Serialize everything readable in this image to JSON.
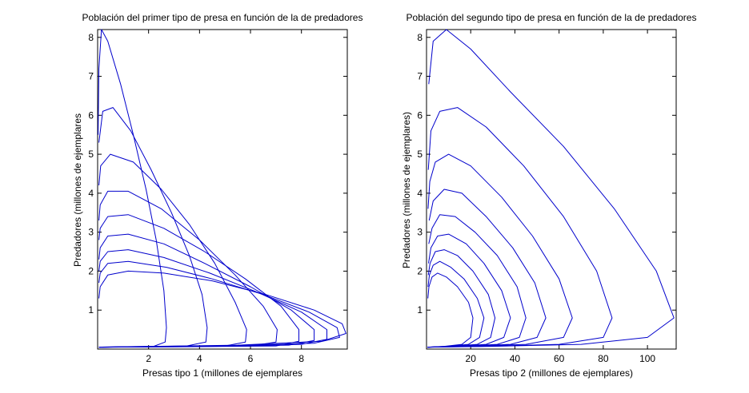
{
  "chart_data": [
    {
      "type": "line",
      "title": "Población del primer tipo de presa en  función de la de predadores",
      "xlabel": "Presas tipo 1 (millones de ejemplares",
      "ylabel": "Predadores (millones de ejemplares",
      "xlim": [
        0,
        9.8
      ],
      "ylim": [
        0,
        8.2
      ],
      "xticks": [
        2,
        4,
        6,
        8
      ],
      "yticks": [
        1,
        2,
        3,
        4,
        5,
        6,
        7,
        8
      ],
      "grid": false,
      "line_color": "#0000cc",
      "series": [
        {
          "points": [
            [
              0.05,
              0.05
            ],
            [
              0.8,
              0.06
            ],
            [
              2.2,
              0.07
            ],
            [
              2.65,
              0.18
            ],
            [
              2.7,
              0.55
            ],
            [
              2.6,
              1.5
            ],
            [
              2.3,
              2.8
            ],
            [
              1.9,
              4.1
            ],
            [
              1.4,
              5.5
            ],
            [
              0.9,
              6.8
            ],
            [
              0.4,
              7.9
            ],
            [
              0.15,
              8.2
            ],
            [
              0.05,
              7.2
            ],
            [
              0.02,
              5.5
            ]
          ]
        },
        {
          "points": [
            [
              0.05,
              0.05
            ],
            [
              1.5,
              0.06
            ],
            [
              3.5,
              0.08
            ],
            [
              4.25,
              0.18
            ],
            [
              4.3,
              0.55
            ],
            [
              4.1,
              1.4
            ],
            [
              3.6,
              2.4
            ],
            [
              2.9,
              3.5
            ],
            [
              2.1,
              4.6
            ],
            [
              1.3,
              5.6
            ],
            [
              0.6,
              6.2
            ],
            [
              0.2,
              6.1
            ],
            [
              0.05,
              5.3
            ]
          ]
        },
        {
          "points": [
            [
              0.05,
              0.05
            ],
            [
              2,
              0.06
            ],
            [
              5,
              0.08
            ],
            [
              5.8,
              0.18
            ],
            [
              5.85,
              0.5
            ],
            [
              5.4,
              1.2
            ],
            [
              4.6,
              2.2
            ],
            [
              3.6,
              3.2
            ],
            [
              2.5,
              4.1
            ],
            [
              1.4,
              4.8
            ],
            [
              0.5,
              5.0
            ],
            [
              0.12,
              4.7
            ],
            [
              0.05,
              4.2
            ]
          ]
        },
        {
          "points": [
            [
              0.05,
              0.05
            ],
            [
              3,
              0.06
            ],
            [
              6,
              0.08
            ],
            [
              7.0,
              0.18
            ],
            [
              7.05,
              0.5
            ],
            [
              6.5,
              1.1
            ],
            [
              5.4,
              1.9
            ],
            [
              4.0,
              2.8
            ],
            [
              2.5,
              3.6
            ],
            [
              1.2,
              4.05
            ],
            [
              0.4,
              4.05
            ],
            [
              0.1,
              3.7
            ],
            [
              0.05,
              3.3
            ]
          ]
        },
        {
          "points": [
            [
              0.05,
              0.05
            ],
            [
              3.5,
              0.06
            ],
            [
              7,
              0.08
            ],
            [
              7.9,
              0.2
            ],
            [
              7.9,
              0.5
            ],
            [
              7.2,
              1.1
            ],
            [
              5.8,
              1.8
            ],
            [
              4.2,
              2.5
            ],
            [
              2.6,
              3.1
            ],
            [
              1.2,
              3.45
            ],
            [
              0.4,
              3.4
            ],
            [
              0.1,
              3.1
            ],
            [
              0.05,
              2.8
            ]
          ]
        },
        {
          "points": [
            [
              0.05,
              0.05
            ],
            [
              4,
              0.07
            ],
            [
              7.5,
              0.1
            ],
            [
              8.5,
              0.22
            ],
            [
              8.5,
              0.5
            ],
            [
              7.6,
              1.0
            ],
            [
              6.0,
              1.6
            ],
            [
              4.2,
              2.2
            ],
            [
              2.6,
              2.7
            ],
            [
              1.2,
              2.95
            ],
            [
              0.4,
              2.9
            ],
            [
              0.1,
              2.6
            ],
            [
              0.05,
              2.3
            ]
          ]
        },
        {
          "points": [
            [
              0.05,
              0.05
            ],
            [
              4.5,
              0.08
            ],
            [
              8,
              0.12
            ],
            [
              9.0,
              0.25
            ],
            [
              9.0,
              0.5
            ],
            [
              8.0,
              0.95
            ],
            [
              6.3,
              1.45
            ],
            [
              4.4,
              1.95
            ],
            [
              2.6,
              2.35
            ],
            [
              1.2,
              2.55
            ],
            [
              0.4,
              2.5
            ],
            [
              0.1,
              2.25
            ],
            [
              0.05,
              2.0
            ]
          ]
        },
        {
          "points": [
            [
              0.05,
              0.05
            ],
            [
              5,
              0.08
            ],
            [
              8.5,
              0.15
            ],
            [
              9.5,
              0.3
            ],
            [
              9.4,
              0.55
            ],
            [
              8.3,
              0.95
            ],
            [
              6.5,
              1.4
            ],
            [
              4.5,
              1.8
            ],
            [
              2.7,
              2.1
            ],
            [
              1.2,
              2.25
            ],
            [
              0.4,
              2.2
            ],
            [
              0.1,
              1.95
            ],
            [
              0.05,
              1.7
            ]
          ]
        },
        {
          "points": [
            [
              0.05,
              0.05
            ],
            [
              5.5,
              0.1
            ],
            [
              8.8,
              0.2
            ],
            [
              9.75,
              0.4
            ],
            [
              9.6,
              0.65
            ],
            [
              8.5,
              1.0
            ],
            [
              6.6,
              1.4
            ],
            [
              4.5,
              1.75
            ],
            [
              2.6,
              1.95
            ],
            [
              1.2,
              2.0
            ],
            [
              0.4,
              1.9
            ],
            [
              0.1,
              1.6
            ],
            [
              0.05,
              1.3
            ]
          ]
        }
      ]
    },
    {
      "type": "line",
      "title": "Población del segundo tipo de presa en función de la de predadores",
      "xlabel": "Presas tipo 2 (millones de ejemplares)",
      "ylabel": "Predadores (millones de ejemplares)",
      "xlim": [
        0,
        113
      ],
      "ylim": [
        0,
        8.2
      ],
      "xticks": [
        20,
        40,
        60,
        80,
        100
      ],
      "yticks": [
        1,
        2,
        3,
        4,
        5,
        6,
        7,
        8
      ],
      "grid": false,
      "line_color": "#0000cc",
      "series": [
        {
          "points": [
            [
              0.5,
              0.05
            ],
            [
              30,
              0.07
            ],
            [
              70,
              0.12
            ],
            [
              100,
              0.3
            ],
            [
              112,
              0.8
            ],
            [
              104,
              2.0
            ],
            [
              85,
              3.6
            ],
            [
              62,
              5.2
            ],
            [
              38,
              6.6
            ],
            [
              20,
              7.7
            ],
            [
              9,
              8.2
            ],
            [
              3,
              7.9
            ],
            [
              1,
              6.8
            ]
          ]
        },
        {
          "points": [
            [
              0.5,
              0.05
            ],
            [
              25,
              0.07
            ],
            [
              60,
              0.12
            ],
            [
              80,
              0.3
            ],
            [
              84,
              0.8
            ],
            [
              77,
              2.0
            ],
            [
              62,
              3.4
            ],
            [
              44,
              4.7
            ],
            [
              27,
              5.7
            ],
            [
              14,
              6.2
            ],
            [
              6,
              6.1
            ],
            [
              2,
              5.6
            ],
            [
              0.8,
              4.6
            ]
          ]
        },
        {
          "points": [
            [
              0.5,
              0.05
            ],
            [
              20,
              0.07
            ],
            [
              45,
              0.12
            ],
            [
              62,
              0.3
            ],
            [
              66,
              0.8
            ],
            [
              60,
              1.8
            ],
            [
              48,
              2.9
            ],
            [
              34,
              3.9
            ],
            [
              20,
              4.7
            ],
            [
              10,
              5.0
            ],
            [
              4,
              4.8
            ],
            [
              1.5,
              4.3
            ],
            [
              0.7,
              3.6
            ]
          ]
        },
        {
          "points": [
            [
              0.5,
              0.05
            ],
            [
              18,
              0.07
            ],
            [
              38,
              0.12
            ],
            [
              50,
              0.3
            ],
            [
              54,
              0.8
            ],
            [
              49,
              1.7
            ],
            [
              39,
              2.6
            ],
            [
              27,
              3.4
            ],
            [
              16,
              4.0
            ],
            [
              8,
              4.1
            ],
            [
              3,
              3.8
            ],
            [
              1.2,
              3.3
            ]
          ]
        },
        {
          "points": [
            [
              0.5,
              0.05
            ],
            [
              15,
              0.07
            ],
            [
              32,
              0.12
            ],
            [
              42,
              0.3
            ],
            [
              45,
              0.8
            ],
            [
              41,
              1.6
            ],
            [
              32,
              2.4
            ],
            [
              22,
              3.0
            ],
            [
              13,
              3.4
            ],
            [
              6,
              3.45
            ],
            [
              2.5,
              3.1
            ],
            [
              1,
              2.7
            ]
          ]
        },
        {
          "points": [
            [
              0.5,
              0.05
            ],
            [
              13,
              0.07
            ],
            [
              27,
              0.12
            ],
            [
              35,
              0.3
            ],
            [
              38,
              0.8
            ],
            [
              34,
              1.5
            ],
            [
              26,
              2.2
            ],
            [
              18,
              2.7
            ],
            [
              10,
              2.95
            ],
            [
              5,
              2.9
            ],
            [
              2,
              2.6
            ],
            [
              0.9,
              2.2
            ]
          ]
        },
        {
          "points": [
            [
              0.5,
              0.05
            ],
            [
              11,
              0.07
            ],
            [
              23,
              0.12
            ],
            [
              29,
              0.3
            ],
            [
              31,
              0.8
            ],
            [
              28,
              1.4
            ],
            [
              21,
              2.0
            ],
            [
              14,
              2.4
            ],
            [
              8,
              2.55
            ],
            [
              4,
              2.5
            ],
            [
              1.6,
              2.2
            ],
            [
              0.8,
              1.9
            ]
          ]
        },
        {
          "points": [
            [
              0.5,
              0.05
            ],
            [
              9,
              0.07
            ],
            [
              19,
              0.12
            ],
            [
              24,
              0.3
            ],
            [
              26,
              0.8
            ],
            [
              23,
              1.3
            ],
            [
              17,
              1.8
            ],
            [
              11,
              2.1
            ],
            [
              6,
              2.25
            ],
            [
              3,
              2.15
            ],
            [
              1.3,
              1.9
            ],
            [
              0.7,
              1.6
            ]
          ]
        },
        {
          "points": [
            [
              0.5,
              0.05
            ],
            [
              8,
              0.07
            ],
            [
              16,
              0.12
            ],
            [
              20,
              0.3
            ],
            [
              21,
              0.8
            ],
            [
              19,
              1.2
            ],
            [
              14,
              1.6
            ],
            [
              9,
              1.85
            ],
            [
              5,
              1.95
            ],
            [
              2.5,
              1.85
            ],
            [
              1.1,
              1.6
            ],
            [
              0.6,
              1.3
            ]
          ]
        }
      ]
    }
  ]
}
